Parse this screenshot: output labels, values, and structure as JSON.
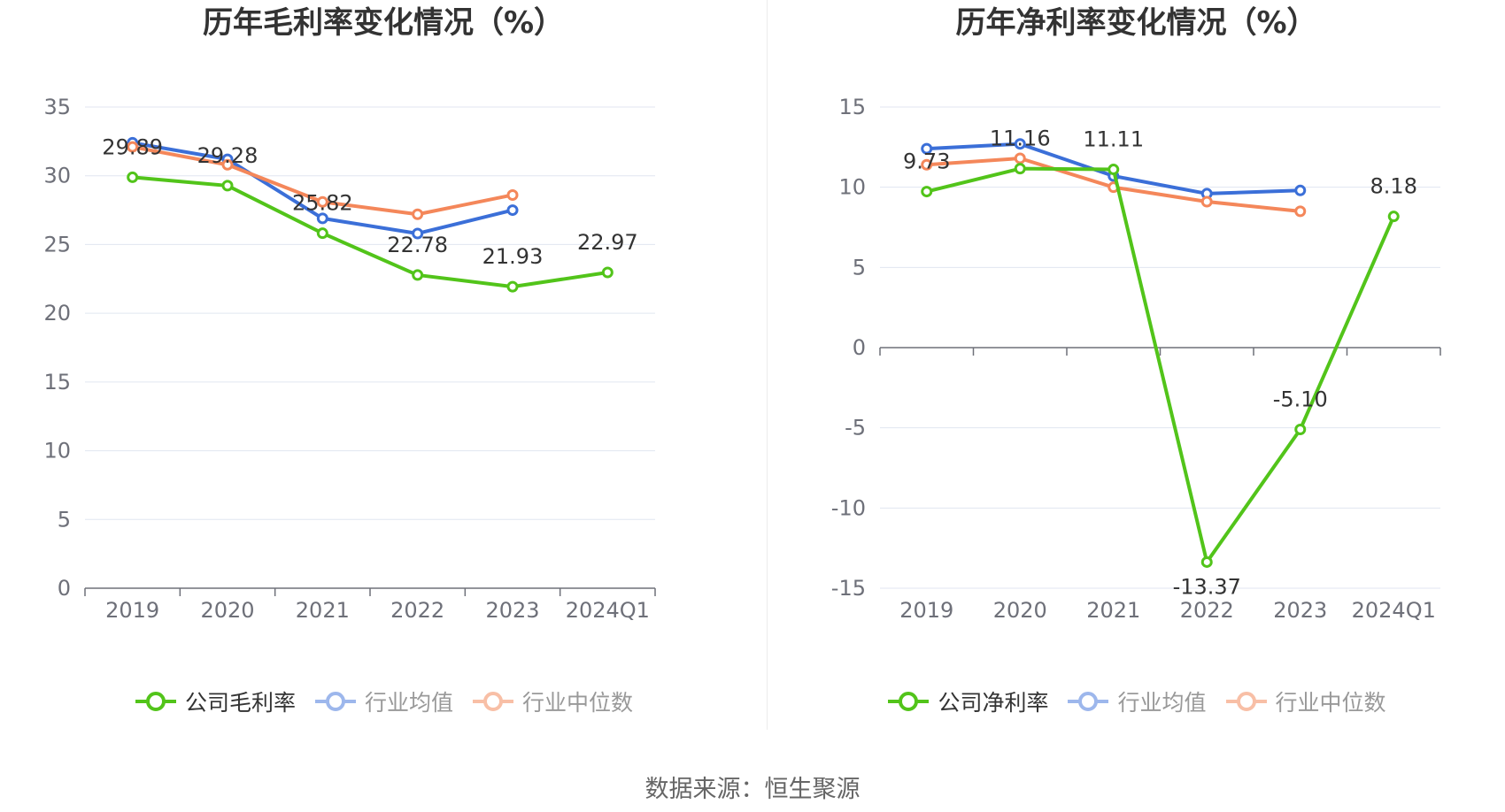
{
  "chart_data": [
    {
      "type": "line",
      "title": "历年毛利率变化情况（%）",
      "categories": [
        "2019",
        "2020",
        "2021",
        "2022",
        "2023",
        "2024Q1"
      ],
      "ylim": [
        0,
        35
      ],
      "yticks": [
        "0",
        "5",
        "10",
        "15",
        "20",
        "25",
        "30",
        "35"
      ],
      "grid": true,
      "legend_position": "bottom",
      "series": [
        {
          "name": "公司毛利率",
          "color": "#52c41a",
          "values": [
            29.89,
            29.28,
            25.82,
            22.78,
            21.93,
            22.97
          ],
          "labels": [
            "29.89",
            "29.28",
            "25.82",
            "22.78",
            "21.93",
            "22.97"
          ],
          "active": true
        },
        {
          "name": "行业均值",
          "color": "#3b6fd8",
          "values": [
            32.4,
            31.2,
            26.9,
            25.8,
            27.5,
            null
          ],
          "active": false
        },
        {
          "name": "行业中位数",
          "color": "#f4875a",
          "values": [
            32.1,
            30.8,
            28.1,
            27.2,
            28.6,
            null
          ],
          "active": false
        }
      ]
    },
    {
      "type": "line",
      "title": "历年净利率变化情况（%）",
      "categories": [
        "2019",
        "2020",
        "2021",
        "2022",
        "2023",
        "2024Q1"
      ],
      "ylim": [
        -15,
        15
      ],
      "yticks": [
        "-15",
        "-10",
        "-5",
        "0",
        "5",
        "10",
        "15"
      ],
      "grid": true,
      "legend_position": "bottom",
      "series": [
        {
          "name": "公司净利率",
          "color": "#52c41a",
          "values": [
            9.73,
            11.16,
            11.11,
            -13.37,
            -5.1,
            8.18
          ],
          "labels": [
            "9.73",
            "11.16",
            "11.11",
            "-13.37",
            "-5.10",
            "8.18"
          ],
          "active": true
        },
        {
          "name": "行业均值",
          "color": "#3b6fd8",
          "values": [
            12.4,
            12.7,
            10.7,
            9.6,
            9.8,
            null
          ],
          "active": false
        },
        {
          "name": "行业中位数",
          "color": "#f4875a",
          "values": [
            11.4,
            11.8,
            10.0,
            9.1,
            8.5,
            null
          ],
          "active": false
        }
      ]
    }
  ],
  "footer": {
    "source": "数据来源：恒生聚源"
  }
}
